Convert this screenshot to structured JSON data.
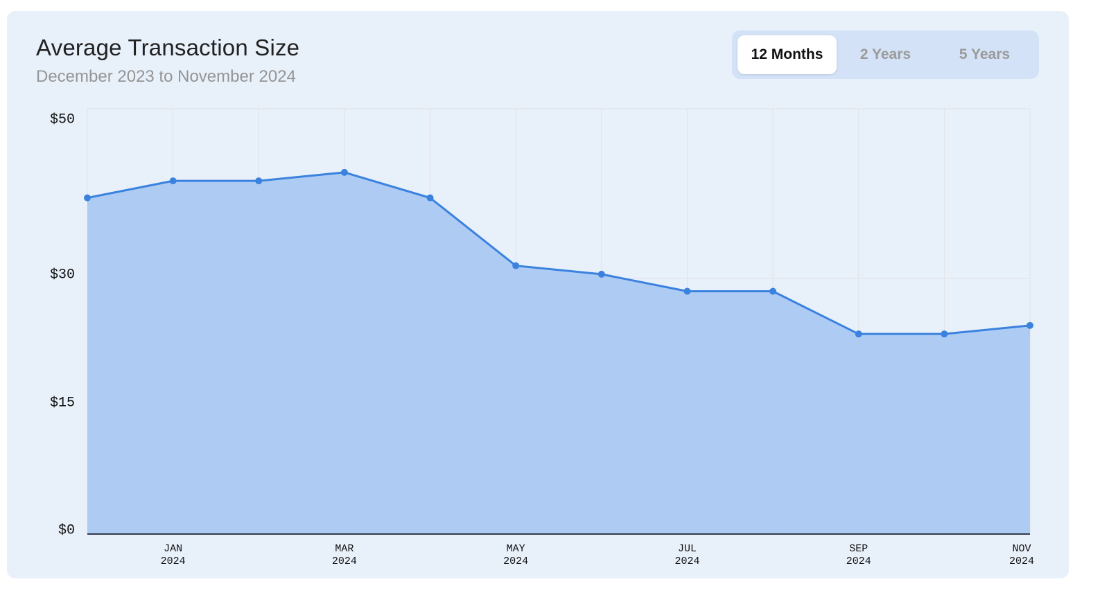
{
  "chart_data": {
    "type": "area",
    "title": "Average Transaction Size",
    "subtitle": "December 2023 to November 2024",
    "x": [
      "Dec 2023",
      "Jan 2024",
      "Feb 2024",
      "Mar 2024",
      "Apr 2024",
      "May 2024",
      "Jun 2024",
      "Jul 2024",
      "Aug 2024",
      "Sep 2024",
      "Oct 2024",
      "Nov 2024"
    ],
    "series": [
      {
        "values": [
          39.5,
          41.5,
          41.5,
          42.5,
          39.5,
          31.5,
          30.5,
          28.5,
          28.5,
          23.5,
          23.5,
          24.5
        ]
      }
    ],
    "ylim": [
      0,
      50
    ],
    "y_ticks": [
      {
        "value": 0,
        "label": "$0"
      },
      {
        "value": 15,
        "label": "$15"
      },
      {
        "value": 30,
        "label": "$30"
      },
      {
        "value": 50,
        "label": "$50"
      }
    ],
    "x_ticks": [
      {
        "index": 1,
        "month": "JAN",
        "year": "2024"
      },
      {
        "index": 3,
        "month": "MAR",
        "year": "2024"
      },
      {
        "index": 5,
        "month": "MAY",
        "year": "2024"
      },
      {
        "index": 7,
        "month": "JUL",
        "year": "2024"
      },
      {
        "index": 9,
        "month": "SEP",
        "year": "2024"
      },
      {
        "index": 11,
        "month": "NOV",
        "year": "2024"
      }
    ],
    "grid": true,
    "colors": {
      "line": "#3b82df",
      "fill": "#abc9f2",
      "grid": "#e2e2e2",
      "axis": "#333a4a"
    }
  },
  "range_selector": {
    "options": [
      "12 Months",
      "2 Years",
      "5 Years"
    ],
    "selected": "12 Months"
  }
}
